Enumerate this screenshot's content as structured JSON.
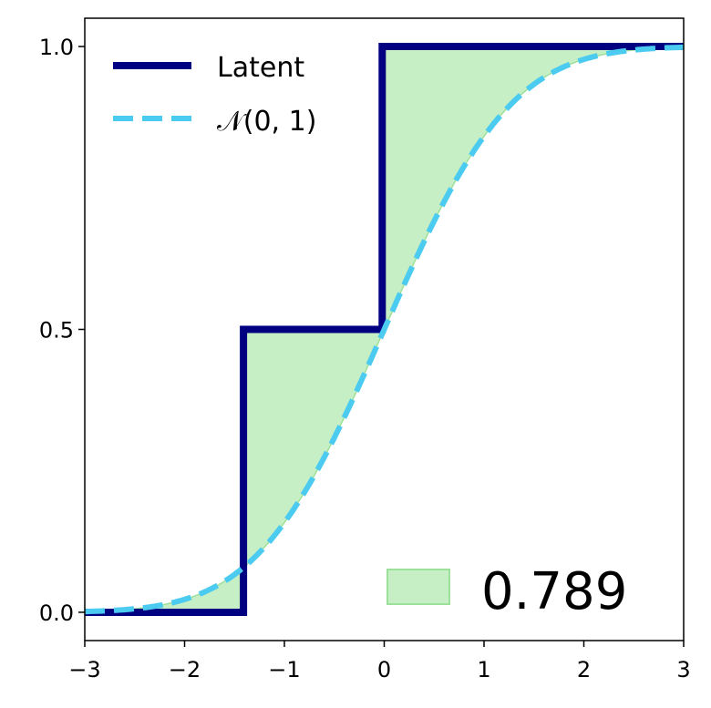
{
  "chart_data": {
    "type": "line",
    "xlim": [
      -3,
      3
    ],
    "ylim": [
      -0.05,
      1.05
    ],
    "x_ticks": [
      -3,
      -2,
      -1,
      0,
      1,
      2,
      3
    ],
    "x_tick_labels": [
      "−3",
      "−2",
      "−1",
      "0",
      "1",
      "2",
      "3"
    ],
    "y_ticks": [
      0.0,
      0.5,
      1.0
    ],
    "y_tick_labels": [
      "0.0",
      "0.5",
      "1.0"
    ],
    "grid": false,
    "legend_position": "top-left",
    "series": [
      {
        "name": "Latent",
        "kind": "step",
        "color": "#000080",
        "style": "solid",
        "points": [
          [
            -3,
            0.0
          ],
          [
            -1.41,
            0.0
          ],
          [
            -1.41,
            0.5
          ],
          [
            -0.02,
            0.5
          ],
          [
            -0.02,
            1.0
          ],
          [
            3,
            1.0
          ]
        ]
      },
      {
        "name": "𝒩(0, 1)",
        "kind": "normal_cdf",
        "mean": 0,
        "std": 1,
        "color": "#4ccbf0",
        "style": "dashed"
      }
    ],
    "fill_between": {
      "color": "#c6efc5",
      "edge_color": "#9de09a",
      "label": "0.789"
    }
  }
}
